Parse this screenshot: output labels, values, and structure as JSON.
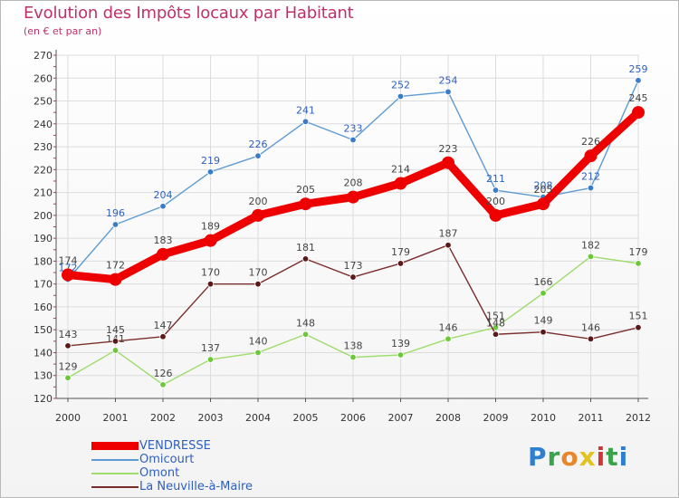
{
  "header": {
    "title": "Evolution des Impôts locaux par Habitant",
    "subtitle": "(en € et par an)"
  },
  "logo": {
    "text": "Proxiti"
  },
  "chart_data": {
    "type": "line",
    "title": "Evolution des Impôts locaux par Habitant",
    "ylabel": "(en € et par an)",
    "xlabel": "",
    "ylim": [
      120,
      270
    ],
    "ytick_step": 10,
    "grid": true,
    "legend_position": "bottom-left",
    "x": [
      "2000",
      "2001",
      "2002",
      "2003",
      "2004",
      "2005",
      "2006",
      "2007",
      "2008",
      "2009",
      "2010",
      "2011",
      "2012"
    ],
    "series": [
      {
        "name": "Omicourt",
        "color": "#5e9bd3",
        "marker": "#3a7cc7",
        "label_color": "#2e5fbf",
        "values": [
          172,
          196,
          204,
          219,
          226,
          241,
          233,
          252,
          254,
          211,
          208,
          212,
          259
        ],
        "labels": [
          "172",
          "196",
          "204",
          "219",
          "226",
          "241",
          "233",
          "252",
          "254",
          "211",
          "208",
          "212",
          "259"
        ]
      },
      {
        "name": "Omont",
        "color": "#9ddc6a",
        "marker": "#6cc83a",
        "label_color": "#444444",
        "values": [
          129,
          141,
          126,
          137,
          140,
          148,
          138,
          139,
          146,
          151,
          166,
          182,
          179
        ],
        "labels": [
          "129",
          "141",
          "126",
          "137",
          "140",
          "148",
          "138",
          "139",
          "146",
          "151",
          "166",
          "182",
          "179"
        ]
      },
      {
        "name": "La Neuville-à-Maire",
        "color": "#7a2d2d",
        "marker": "#5a1818",
        "label_color": "#444444",
        "values": [
          143,
          145,
          147,
          170,
          170,
          181,
          173,
          179,
          187,
          148,
          149,
          146,
          151
        ],
        "labels": [
          "143",
          "145",
          "147",
          "170",
          "170",
          "181",
          "173",
          "179",
          "187",
          "148",
          "149",
          "146",
          "151"
        ]
      },
      {
        "name": "VENDRESSE",
        "color": "#ee0000",
        "marker": "#ee0000",
        "label_color": "#444444",
        "values": [
          174,
          172,
          183,
          189,
          200,
          205,
          208,
          214,
          223,
          200,
          205,
          226,
          245
        ],
        "labels": [
          "174",
          "172",
          "183",
          "189",
          "200",
          "205",
          "208",
          "214",
          "223",
          "200",
          "205",
          "226",
          "245"
        ]
      }
    ]
  },
  "legend": {
    "items": [
      {
        "label": "VENDRESSE",
        "color": "#ee0000"
      },
      {
        "label": "Omicourt",
        "color": "#5e9bd3"
      },
      {
        "label": "Omont",
        "color": "#9ddc6a"
      },
      {
        "label": "La Neuville-à-Maire",
        "color": "#7a2d2d"
      }
    ]
  }
}
